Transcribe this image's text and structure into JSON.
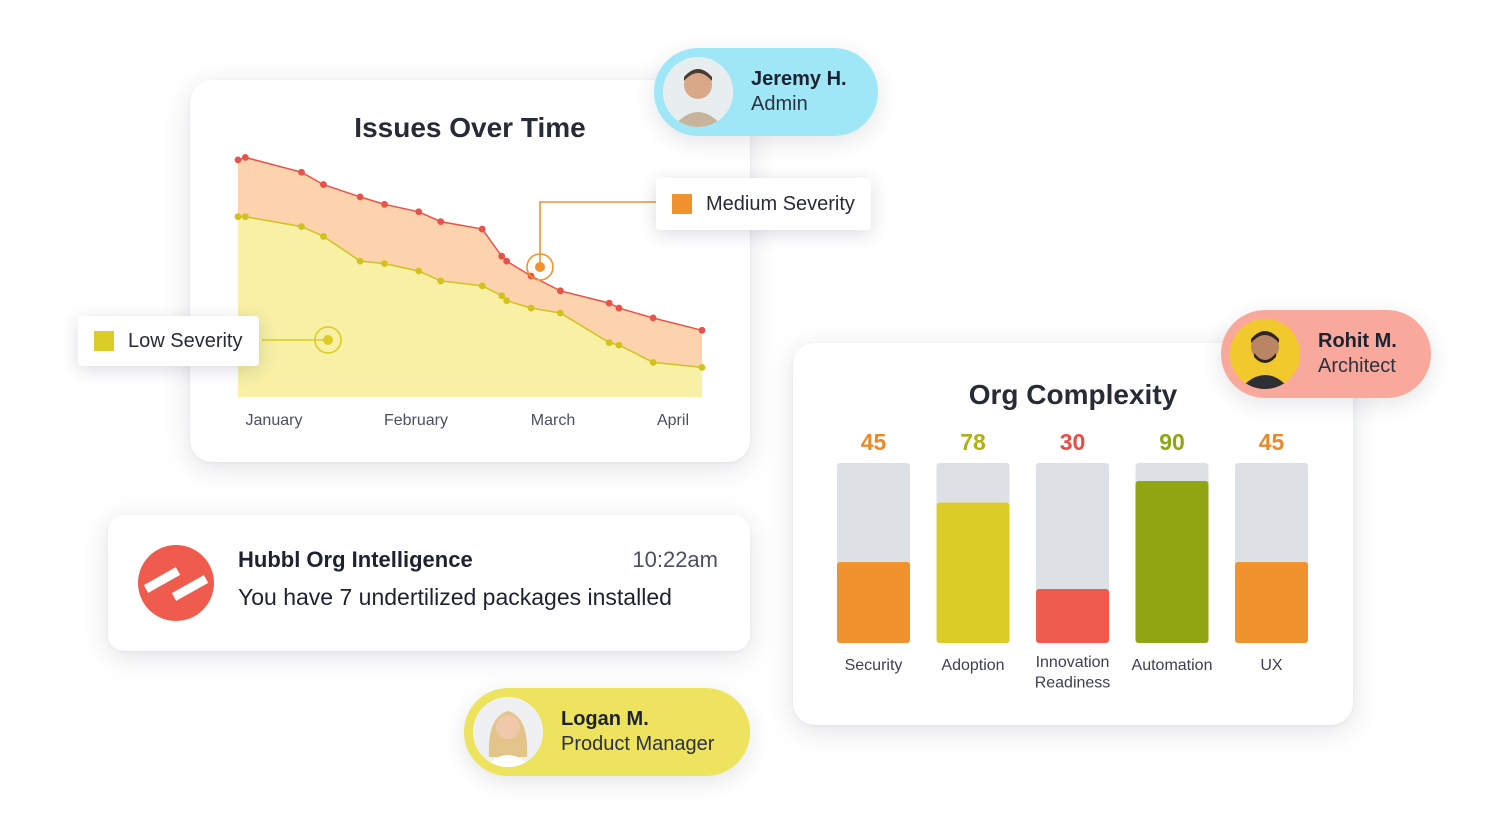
{
  "users": [
    {
      "name": "Jeremy H.",
      "role": "Admin",
      "avatar_icon": "person-avatar-icon"
    },
    {
      "name": "Rohit M.",
      "role": "Architect",
      "avatar_icon": "person-avatar-icon"
    },
    {
      "name": "Logan M.",
      "role": "Product Manager",
      "avatar_icon": "person-avatar-icon"
    }
  ],
  "legends": {
    "medium": {
      "label": "Medium Severity",
      "color": "#f0922e"
    },
    "low": {
      "label": "Low Severity",
      "color": "#dccc28"
    }
  },
  "notification": {
    "title": "Hubbl Org Intelligence",
    "time": "10:22am",
    "message": "You have 7 undertilized packages installed",
    "logo_icon": "hubbl-logo-icon",
    "logo_color": "#ef5b4c"
  },
  "chart_data": [
    {
      "type": "area",
      "title": "Issues Over Time",
      "xlabel": "",
      "ylabel": "",
      "x_ticks": [
        "January",
        "February",
        "March",
        "April"
      ],
      "x": [
        0.0,
        0.15,
        1.3,
        1.75,
        2.5,
        3.0,
        3.7,
        4.15,
        5.0,
        5.4,
        5.5,
        6.0,
        6.6,
        7.6,
        7.8,
        8.5,
        9.5
      ],
      "series": [
        {
          "name": "Medium Severity",
          "color": "#e9524a",
          "fill": "#fdd3ad",
          "values": [
            96,
            97,
            91,
            86,
            81,
            78,
            75,
            71,
            68,
            57,
            55,
            49,
            43,
            38,
            36,
            32,
            27
          ]
        },
        {
          "name": "Low Severity",
          "color": "#d2c21e",
          "fill": "#f7f0a5",
          "values": [
            73,
            73,
            69,
            65,
            55,
            54,
            51,
            47,
            45,
            41,
            39,
            36,
            34,
            22,
            21,
            14,
            12
          ]
        }
      ],
      "ylim": [
        0,
        100
      ],
      "grid": false,
      "legend": "callouts"
    },
    {
      "type": "bar",
      "title": "Org Complexity",
      "categories": [
        "Security",
        "Adoption",
        "Innovation Readiness",
        "Automation",
        "UX"
      ],
      "category_lines": [
        [
          "Security"
        ],
        [
          "Adoption"
        ],
        [
          "Innovation",
          "Readiness"
        ],
        [
          "Automation"
        ],
        [
          "UX"
        ]
      ],
      "values": [
        45,
        78,
        30,
        90,
        45
      ],
      "colors": [
        "#f0922e",
        "#dccc28",
        "#ef5b4c",
        "#8fa612",
        "#f0922e"
      ],
      "label_colors": [
        "#e8892a",
        "#aeb017",
        "#e94e44",
        "#8fa612",
        "#e8892a"
      ],
      "track_color": "#dde0e5",
      "ylim": [
        0,
        100
      ],
      "xlabel": "",
      "ylabel": ""
    }
  ]
}
